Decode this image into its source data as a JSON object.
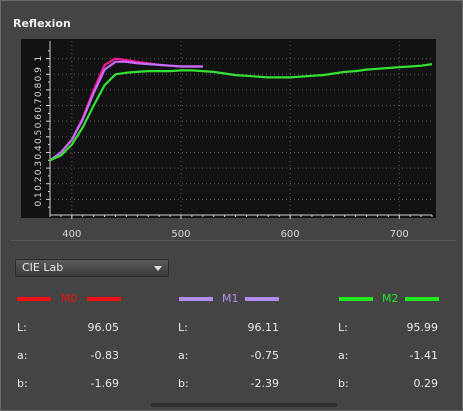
{
  "panel": {
    "title": "Reflexion"
  },
  "chart_data": {
    "type": "line",
    "xlim": [
      380,
      730
    ],
    "ylim": [
      0,
      1.1
    ],
    "x_ticks": [
      400,
      500,
      600,
      700
    ],
    "y_ticks": [
      0.1,
      0.2,
      0.3,
      0.4,
      0.5,
      0.6,
      0.7,
      0.8,
      0.9,
      1
    ],
    "grid": true,
    "background": "#121212",
    "series": [
      {
        "color": "#ff1493",
        "x": [
          380,
          390,
          400,
          410,
          420,
          430,
          440,
          450,
          460,
          470,
          480,
          490,
          500,
          510,
          520
        ],
        "y": [
          0.35,
          0.4,
          0.48,
          0.62,
          0.8,
          0.96,
          1.0,
          0.99,
          0.98,
          0.97,
          0.96,
          0.955,
          0.95,
          0.95,
          0.95
        ]
      },
      {
        "color": "#c070ff",
        "x": [
          380,
          390,
          400,
          410,
          420,
          430,
          440,
          450,
          460,
          470,
          480,
          490,
          500,
          510,
          520
        ],
        "y": [
          0.35,
          0.4,
          0.48,
          0.61,
          0.78,
          0.93,
          0.98,
          0.98,
          0.97,
          0.965,
          0.96,
          0.955,
          0.95,
          0.95,
          0.95
        ]
      },
      {
        "color": "#33e233",
        "x": [
          380,
          390,
          400,
          410,
          420,
          430,
          440,
          450,
          460,
          470,
          480,
          490,
          500,
          510,
          520,
          530,
          540,
          550,
          560,
          570,
          580,
          590,
          600,
          610,
          620,
          630,
          640,
          650,
          660,
          670,
          680,
          690,
          700,
          710,
          720,
          730
        ],
        "y": [
          0.35,
          0.38,
          0.45,
          0.56,
          0.7,
          0.83,
          0.9,
          0.91,
          0.915,
          0.92,
          0.92,
          0.92,
          0.925,
          0.925,
          0.92,
          0.915,
          0.905,
          0.895,
          0.89,
          0.885,
          0.88,
          0.88,
          0.88,
          0.885,
          0.89,
          0.895,
          0.905,
          0.915,
          0.92,
          0.93,
          0.935,
          0.94,
          0.945,
          0.95,
          0.955,
          0.965
        ]
      }
    ]
  },
  "colorspace": {
    "selected": "CIE Lab"
  },
  "measurements": [
    {
      "name": "M0",
      "color": "#ee1111",
      "L": "96.05",
      "a": "-0.83",
      "b": "-1.69"
    },
    {
      "name": "M1",
      "color": "#b08ef0",
      "L": "96.11",
      "a": "-0.75",
      "b": "-2.39"
    },
    {
      "name": "M2",
      "color": "#22e822",
      "L": "95.99",
      "a": "-1.41",
      "b": "0.29"
    }
  ],
  "row_labels": {
    "L": "L:",
    "a": "a:",
    "b": "b:"
  }
}
